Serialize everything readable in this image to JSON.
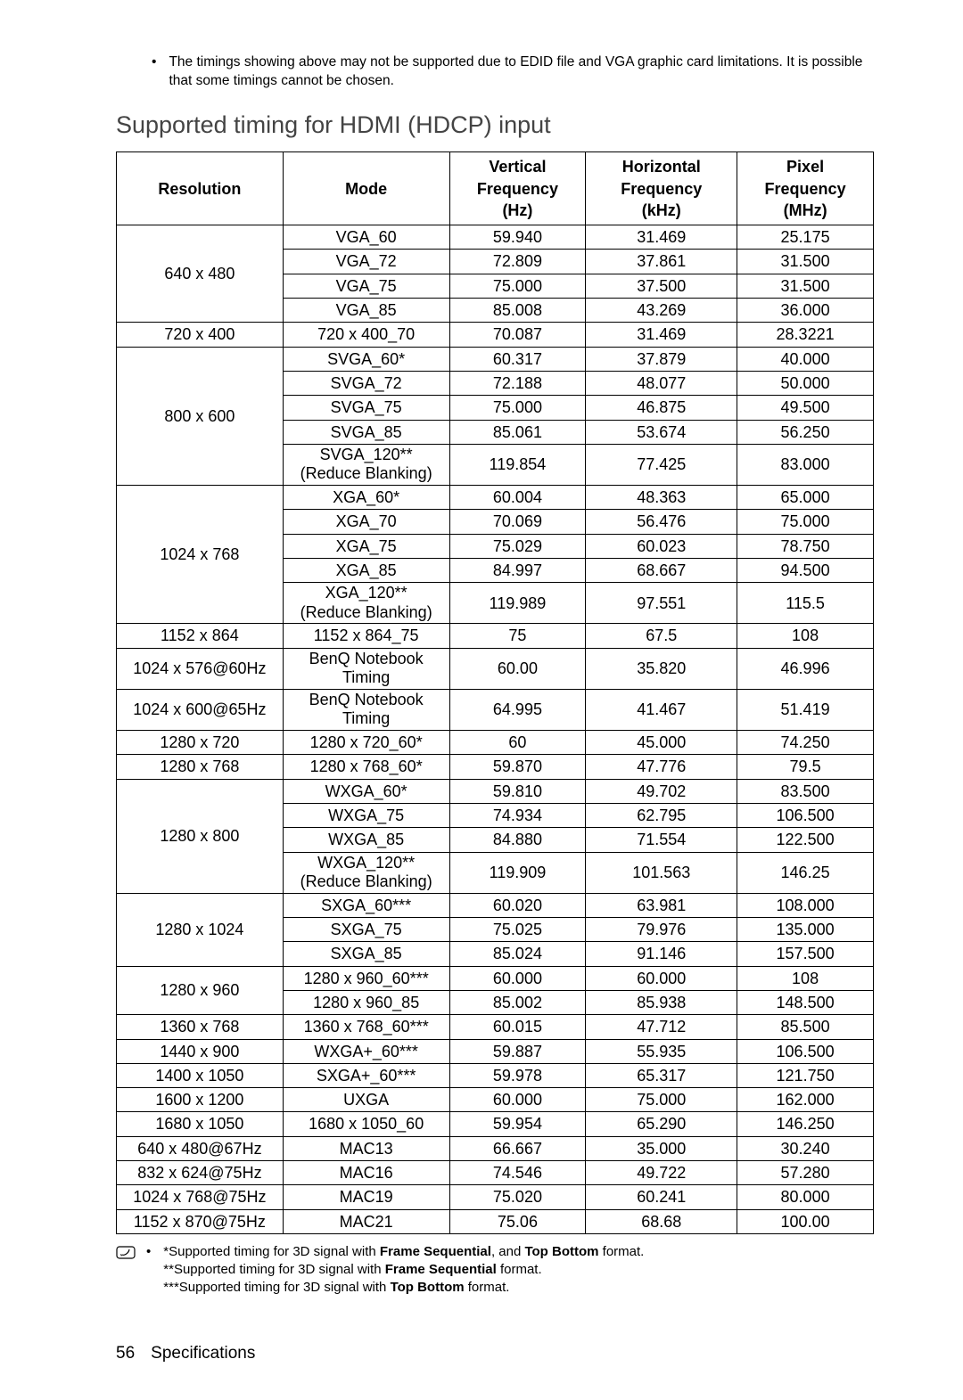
{
  "top_note": "The timings showing above may not be supported due to EDID file and VGA graphic card limitations. It is possible that some timings cannot be chosen.",
  "section_title": "Supported timing for HDMI (HDCP) input",
  "headers": {
    "resolution": "Resolution",
    "mode": "Mode",
    "vfreq_l1": "Vertical",
    "vfreq_l2": "Frequency",
    "vfreq_l3": "(Hz)",
    "hfreq_l1": "Horizontal",
    "hfreq_l2": "Frequency",
    "hfreq_l3": "(kHz)",
    "pfreq_l1": "Pixel",
    "pfreq_l2": "Frequency",
    "pfreq_l3": "(MHz)"
  },
  "groups": [
    {
      "resolution": "640 x 480",
      "rows": [
        {
          "mode": "VGA_60",
          "v": "59.940",
          "h": "31.469",
          "p": "25.175"
        },
        {
          "mode": "VGA_72",
          "v": "72.809",
          "h": "37.861",
          "p": "31.500"
        },
        {
          "mode": "VGA_75",
          "v": "75.000",
          "h": "37.500",
          "p": "31.500"
        },
        {
          "mode": "VGA_85",
          "v": "85.008",
          "h": "43.269",
          "p": "36.000"
        }
      ]
    },
    {
      "resolution": "720 x 400",
      "rows": [
        {
          "mode": "720 x 400_70",
          "v": "70.087",
          "h": "31.469",
          "p": "28.3221"
        }
      ]
    },
    {
      "resolution": "800 x 600",
      "rows": [
        {
          "mode": "SVGA_60*",
          "v": "60.317",
          "h": "37.879",
          "p": "40.000"
        },
        {
          "mode": "SVGA_72",
          "v": "72.188",
          "h": "48.077",
          "p": "50.000"
        },
        {
          "mode": "SVGA_75",
          "v": "75.000",
          "h": "46.875",
          "p": "49.500"
        },
        {
          "mode": "SVGA_85",
          "v": "85.061",
          "h": "53.674",
          "p": "56.250"
        },
        {
          "mode_l1": "SVGA_120**",
          "mode_l2": "(Reduce Blanking)",
          "v": "119.854",
          "h": "77.425",
          "p": "83.000"
        }
      ]
    },
    {
      "resolution": "1024 x 768",
      "rows": [
        {
          "mode": "XGA_60*",
          "v": "60.004",
          "h": "48.363",
          "p": "65.000"
        },
        {
          "mode": "XGA_70",
          "v": "70.069",
          "h": "56.476",
          "p": "75.000"
        },
        {
          "mode": "XGA_75",
          "v": "75.029",
          "h": "60.023",
          "p": "78.750"
        },
        {
          "mode": "XGA_85",
          "v": "84.997",
          "h": "68.667",
          "p": "94.500"
        },
        {
          "mode_l1": "XGA_120**",
          "mode_l2": "(Reduce Blanking)",
          "v": "119.989",
          "h": "97.551",
          "p": "115.5"
        }
      ]
    },
    {
      "resolution": "1152 x 864",
      "rows": [
        {
          "mode": "1152 x 864_75",
          "v": "75",
          "h": "67.5",
          "p": "108"
        }
      ]
    },
    {
      "resolution": "1024 x 576@60Hz",
      "rows": [
        {
          "mode_l1": "BenQ Notebook",
          "mode_l2": "Timing",
          "v": "60.00",
          "h": "35.820",
          "p": "46.996"
        }
      ]
    },
    {
      "resolution": "1024 x 600@65Hz",
      "rows": [
        {
          "mode_l1": "BenQ Notebook",
          "mode_l2": "Timing",
          "v": "64.995",
          "h": "41.467",
          "p": "51.419"
        }
      ]
    },
    {
      "resolution": "1280 x 720",
      "rows": [
        {
          "mode": "1280 x 720_60*",
          "v": "60",
          "h": "45.000",
          "p": "74.250"
        }
      ]
    },
    {
      "resolution": "1280 x 768",
      "rows": [
        {
          "mode": "1280 x 768_60*",
          "v": "59.870",
          "h": "47.776",
          "p": "79.5"
        }
      ]
    },
    {
      "resolution": "1280 x 800",
      "rows": [
        {
          "mode": "WXGA_60*",
          "v": "59.810",
          "h": "49.702",
          "p": "83.500"
        },
        {
          "mode": "WXGA_75",
          "v": "74.934",
          "h": "62.795",
          "p": "106.500"
        },
        {
          "mode": "WXGA_85",
          "v": "84.880",
          "h": "71.554",
          "p": "122.500"
        },
        {
          "mode_l1": "WXGA_120**",
          "mode_l2": "(Reduce Blanking)",
          "v": "119.909",
          "h": "101.563",
          "p": "146.25"
        }
      ]
    },
    {
      "resolution": "1280 x 1024",
      "rows": [
        {
          "mode": "SXGA_60***",
          "v": "60.020",
          "h": "63.981",
          "p": "108.000"
        },
        {
          "mode": "SXGA_75",
          "v": "75.025",
          "h": "79.976",
          "p": "135.000"
        },
        {
          "mode": "SXGA_85",
          "v": "85.024",
          "h": "91.146",
          "p": "157.500"
        }
      ]
    },
    {
      "resolution": "1280 x 960",
      "rows": [
        {
          "mode": "1280 x 960_60***",
          "v": "60.000",
          "h": "60.000",
          "p": "108"
        },
        {
          "mode": "1280 x 960_85",
          "v": "85.002",
          "h": "85.938",
          "p": "148.500"
        }
      ]
    },
    {
      "resolution": "1360 x 768",
      "rows": [
        {
          "mode": "1360 x 768_60***",
          "v": "60.015",
          "h": "47.712",
          "p": "85.500"
        }
      ]
    },
    {
      "resolution": "1440 x 900",
      "rows": [
        {
          "mode": "WXGA+_60***",
          "v": "59.887",
          "h": "55.935",
          "p": "106.500"
        }
      ]
    },
    {
      "resolution": "1400 x 1050",
      "rows": [
        {
          "mode": "SXGA+_60***",
          "v": "59.978",
          "h": "65.317",
          "p": "121.750"
        }
      ]
    },
    {
      "resolution": "1600 x 1200",
      "rows": [
        {
          "mode": "UXGA",
          "v": "60.000",
          "h": "75.000",
          "p": "162.000"
        }
      ]
    },
    {
      "resolution": "1680 x 1050",
      "rows": [
        {
          "mode": "1680 x 1050_60",
          "v": "59.954",
          "h": "65.290",
          "p": "146.250"
        }
      ]
    },
    {
      "resolution": "640 x 480@67Hz",
      "rows": [
        {
          "mode": "MAC13",
          "v": "66.667",
          "h": "35.000",
          "p": "30.240"
        }
      ]
    },
    {
      "resolution": "832 x 624@75Hz",
      "rows": [
        {
          "mode": "MAC16",
          "v": "74.546",
          "h": "49.722",
          "p": "57.280"
        }
      ]
    },
    {
      "resolution": "1024 x 768@75Hz",
      "rows": [
        {
          "mode": "MAC19",
          "v": "75.020",
          "h": "60.241",
          "p": "80.000"
        }
      ]
    },
    {
      "resolution": "1152 x 870@75Hz",
      "rows": [
        {
          "mode": "MAC21",
          "v": "75.06",
          "h": "68.68",
          "p": "100.00"
        }
      ]
    }
  ],
  "footnotes": {
    "l1_pre": "*Supported timing for 3D signal with ",
    "l1_b1": "Frame Sequential",
    "l1_mid": ", and ",
    "l1_b2": "Top Bottom",
    "l1_post": " format.",
    "l2_pre": "**Supported timing for 3D signal with ",
    "l2_b1": "Frame Sequential",
    "l2_post": " format.",
    "l3_pre": "***Supported timing for 3D signal with ",
    "l3_b1": "Top Bottom",
    "l3_post": " format."
  },
  "footer": {
    "page": "56",
    "section": "Specifications"
  }
}
